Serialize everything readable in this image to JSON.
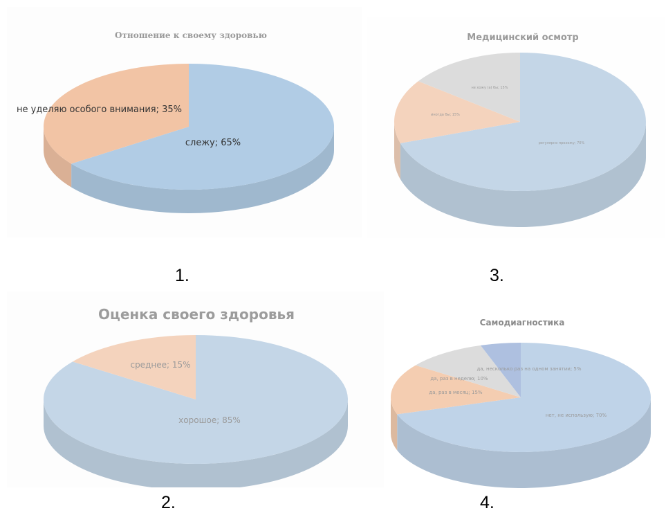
{
  "captions": [
    "1.",
    "2.",
    "3.",
    "4."
  ],
  "charts": [
    {
      "number": "1.",
      "chart_data": {
        "type": "pie",
        "title": "Отношение к своему здоровью",
        "slices": [
          {
            "label": "слежу; 65%",
            "value": 65,
            "color": "#b1cce5"
          },
          {
            "label": "не уделяю особого внимания; 35%",
            "value": 35,
            "color": "#f2c4a5"
          }
        ]
      }
    },
    {
      "number": "3.",
      "chart_data": {
        "type": "pie",
        "title": "Медицинский осмотр",
        "slices": [
          {
            "label": "регулярно прохожу; 70%",
            "value": 70,
            "color": "#c4d6e7"
          },
          {
            "label": "иногда бы; 15%",
            "value": 15,
            "color": "#f4d3bd"
          },
          {
            "label": "не хожу (а) бы; 15%",
            "value": 15,
            "color": "#dcdcdc"
          }
        ]
      }
    },
    {
      "number": "2.",
      "chart_data": {
        "type": "pie",
        "title": "Оценка своего здоровья",
        "slices": [
          {
            "label": "хорошое; 85%",
            "value": 85,
            "color": "#c4d6e7"
          },
          {
            "label": "среднее; 15%",
            "value": 15,
            "color": "#f4d3bd"
          }
        ]
      }
    },
    {
      "number": "4.",
      "chart_data": {
        "type": "pie",
        "title": "Самодиагностика",
        "slices": [
          {
            "label": "нет, не использую; 70%",
            "value": 70,
            "color": "#bfd3e8"
          },
          {
            "label": "да, раз в месяц; 15%",
            "value": 15,
            "color": "#f4cdb1"
          },
          {
            "label": "да, раз в неделю; 10%",
            "value": 10,
            "color": "#dcdcdc"
          },
          {
            "label": "да, несколько раз на одном занятии; 5%",
            "value": 5,
            "color": "#aec0e0"
          }
        ]
      }
    }
  ]
}
